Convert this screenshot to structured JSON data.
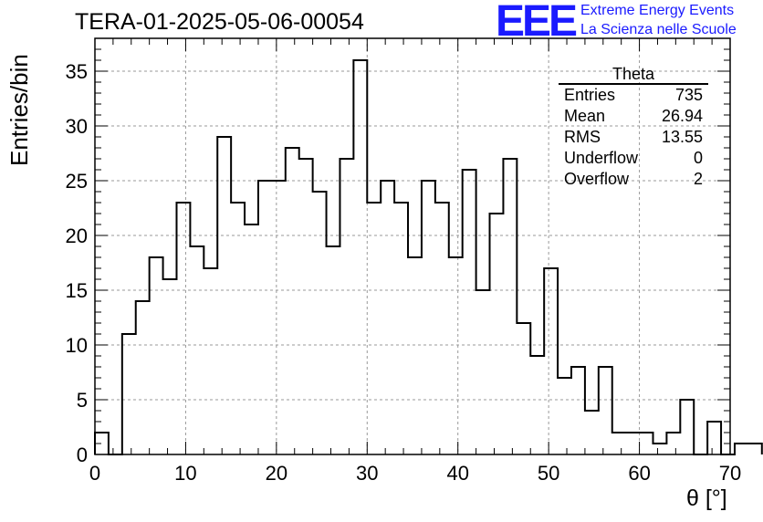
{
  "chart_data": {
    "type": "histogram",
    "title": "TERA-01-2025-05-06-00054",
    "xlabel": "θ [°]",
    "ylabel": "Entries/bin",
    "xlim": [
      0,
      70
    ],
    "ylim": [
      0,
      38
    ],
    "x_ticks": [
      0,
      10,
      20,
      30,
      40,
      50,
      60,
      70
    ],
    "y_ticks": [
      0,
      5,
      10,
      15,
      20,
      25,
      30,
      35
    ],
    "grid": true,
    "bin_width": 1.5,
    "bin_start": 0,
    "values": [
      2,
      0,
      11,
      14,
      18,
      16,
      23,
      19,
      17,
      29,
      23,
      21,
      25,
      25,
      28,
      27,
      24,
      19,
      27,
      36,
      23,
      25,
      23,
      18,
      25,
      23,
      18,
      26,
      15,
      22,
      27,
      12,
      9,
      17,
      7,
      8,
      4,
      8,
      2,
      2,
      2,
      1,
      2,
      5,
      0,
      3,
      0,
      1,
      1
    ],
    "stats_box": {
      "title": "Theta",
      "rows": [
        {
          "label": "Entries",
          "value": "735"
        },
        {
          "label": "Mean",
          "value": "26.94"
        },
        {
          "label": "RMS",
          "value": "13.55"
        },
        {
          "label": "Underflow",
          "value": "0"
        },
        {
          "label": "Overflow",
          "value": "2"
        }
      ]
    },
    "line_color": "#000000"
  },
  "logo": {
    "mark": "EEE",
    "line1": "Extreme Energy Events",
    "line2": "La Scienza nelle Scuole",
    "color": "#1a1aff"
  }
}
